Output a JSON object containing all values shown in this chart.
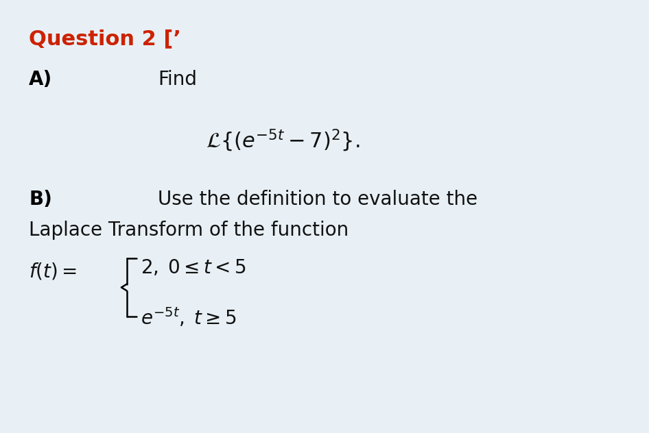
{
  "background_color": "#e8f0f5",
  "title": "Question 2 [’",
  "title_color": "#cc2200",
  "title_fontsize": 22,
  "part_a_label": "A)",
  "part_a_find": "Find",
  "part_a_label_fontsize": 20,
  "part_a_formula_fontsize": 22,
  "part_b_label": "B)",
  "part_b_label_fontsize": 20,
  "part_b_text1": "Use the definition to evaluate the",
  "part_b_text2": "Laplace Transform of the function",
  "part_b_text_fontsize": 20,
  "piecewise_fontsize": 20,
  "text_color": "#111111",
  "bold_text_color": "#000000"
}
